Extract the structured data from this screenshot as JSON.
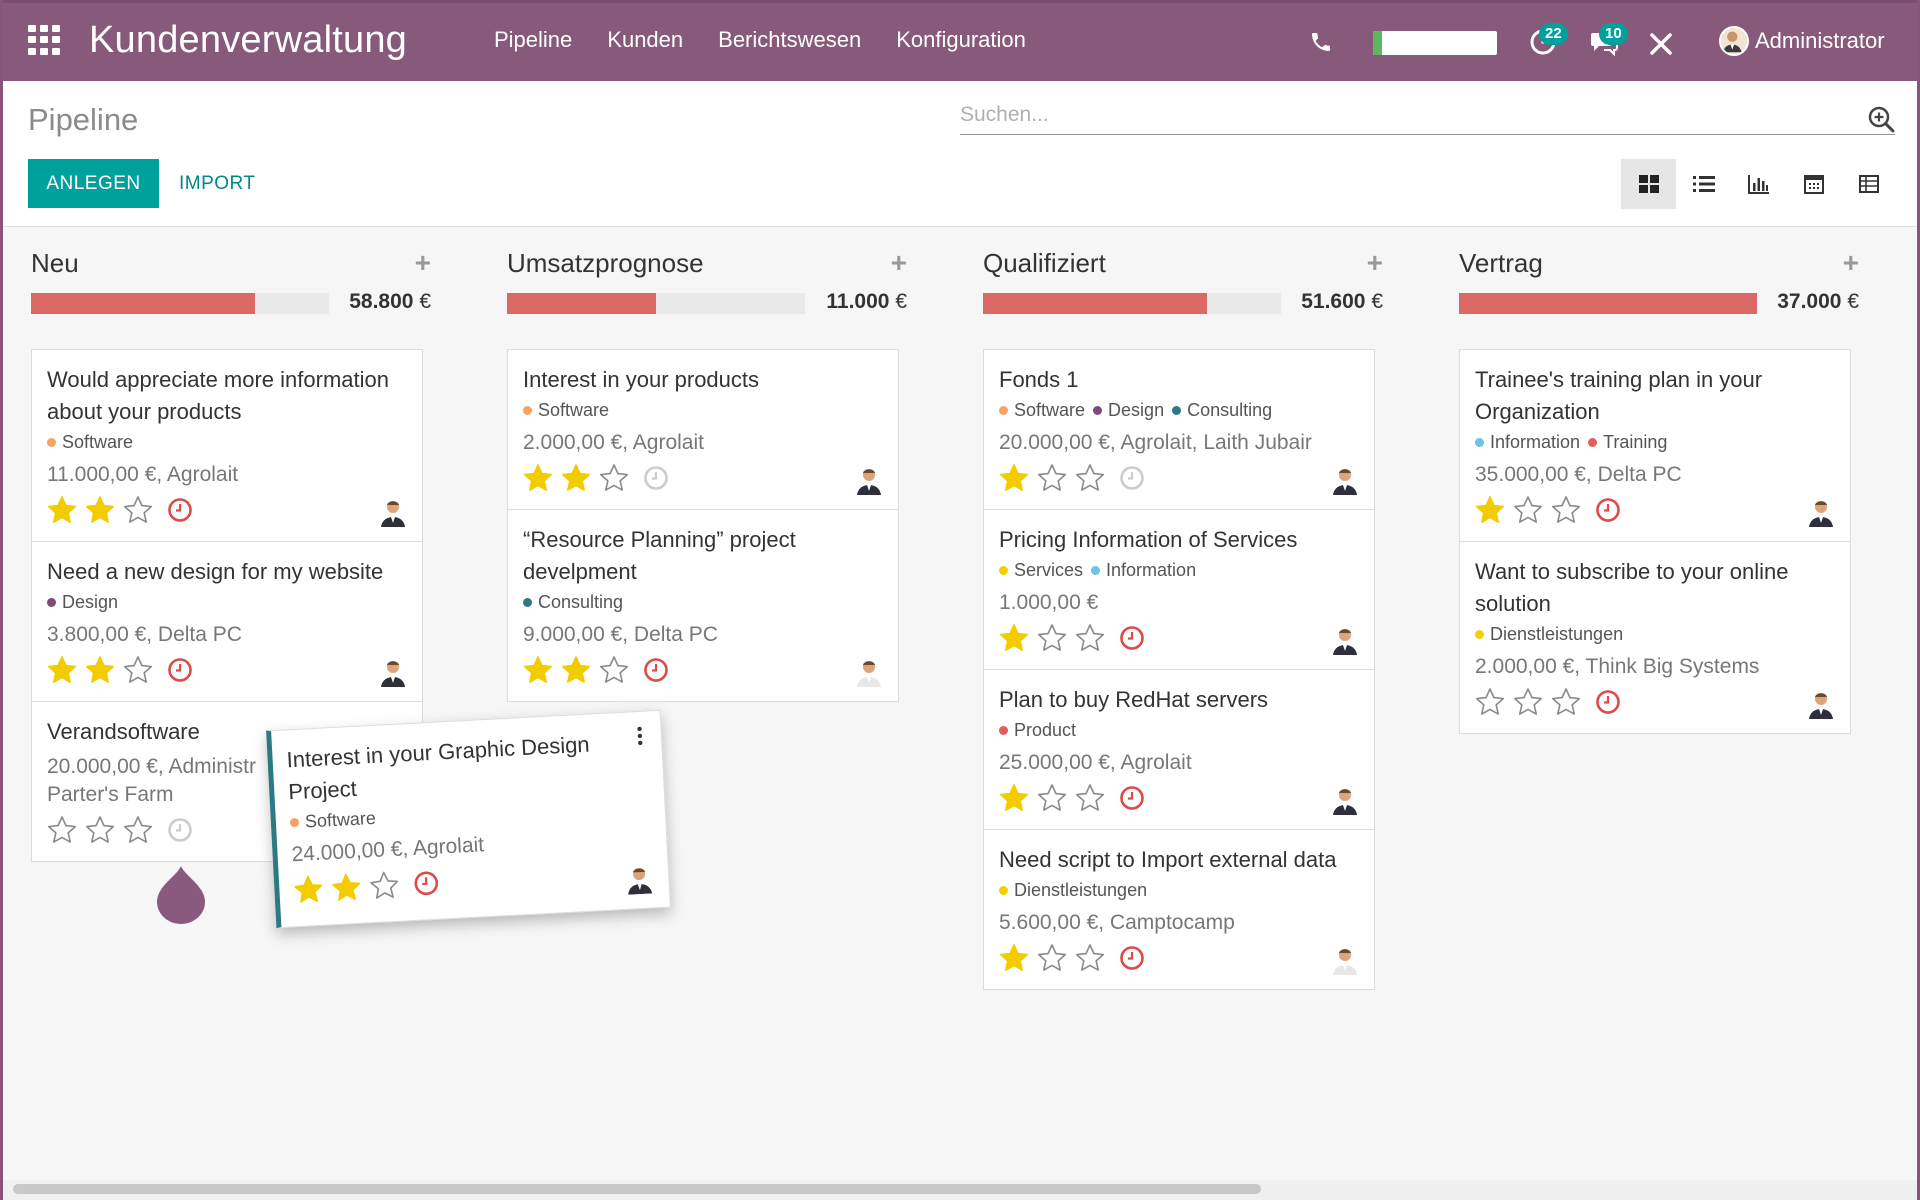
{
  "navbar": {
    "app_name": "Kundenverwaltung",
    "menu": [
      "Pipeline",
      "Kunden",
      "Berichtswesen",
      "Konfiguration"
    ],
    "activity_count": "22",
    "message_count": "10",
    "user_name": "Administrator",
    "voip_progress": 0.07
  },
  "control": {
    "breadcrumb": "Pipeline",
    "search_placeholder": "Suchen...",
    "create_label": "ANLEGEN",
    "import_label": "IMPORT",
    "views": [
      "kanban",
      "list",
      "graph",
      "calendar",
      "pivot"
    ],
    "active_view": "kanban"
  },
  "columns": [
    {
      "title": "Neu",
      "total": "58.800",
      "currency": "€",
      "progress": 0.75,
      "cards": [
        {
          "title": "Would appreciate more information about your products",
          "tags": [
            {
              "name": "Software",
              "color": "#f4a460"
            }
          ],
          "amount": "11.000,00 €, Agrolait",
          "stars": 2,
          "clock": "red"
        },
        {
          "title": "Need a new design for my website",
          "tags": [
            {
              "name": "Design",
              "color": "#7c4b7a"
            }
          ],
          "amount": "3.800,00 €, Delta PC",
          "stars": 2,
          "clock": "red"
        },
        {
          "title": "Verandsoftware",
          "tags": [],
          "amount": "20.000,00 €, Administr",
          "amount2": "Parter's Farm",
          "stars": 0,
          "clock": "grey"
        }
      ]
    },
    {
      "title": "Umsatzprognose",
      "total": "11.000",
      "currency": "€",
      "progress": 0.5,
      "cards": [
        {
          "title": "Interest in your products",
          "tags": [
            {
              "name": "Software",
              "color": "#f4a460"
            }
          ],
          "amount": "2.000,00 €, Agrolait",
          "stars": 2,
          "clock": "grey"
        },
        {
          "title": "“Resource Planning” project develpment",
          "tags": [
            {
              "name": "Consulting",
              "color": "#2b7a83"
            }
          ],
          "amount": "9.000,00 €, Delta PC",
          "stars": 2,
          "clock": "red"
        }
      ]
    },
    {
      "title": "Qualifiziert",
      "total": "51.600",
      "currency": "€",
      "progress": 0.75,
      "cards": [
        {
          "title": "Fonds 1",
          "tags": [
            {
              "name": "Software",
              "color": "#f4a460"
            },
            {
              "name": "Design",
              "color": "#7c4b7a"
            },
            {
              "name": "Consulting",
              "color": "#2b7a83"
            }
          ],
          "amount": "20.000,00 €, Agrolait, Laith Jubair",
          "stars": 1,
          "clock": "grey"
        },
        {
          "title": "Pricing Information of Services",
          "tags": [
            {
              "name": "Services",
              "color": "#f5d000"
            },
            {
              "name": "Information",
              "color": "#6cc1ed"
            }
          ],
          "amount": "1.000,00 €",
          "stars": 1,
          "clock": "red"
        },
        {
          "title": "Plan to buy RedHat servers",
          "tags": [
            {
              "name": "Product",
              "color": "#e45d5d"
            }
          ],
          "amount": "25.000,00 €, Agrolait",
          "stars": 1,
          "clock": "red"
        },
        {
          "title": "Need script to Import external data",
          "tags": [
            {
              "name": "Dienstleistungen",
              "color": "#f5d000"
            }
          ],
          "amount": "5.600,00 €, Camptocamp",
          "stars": 1,
          "clock": "red"
        }
      ]
    },
    {
      "title": "Vertrag",
      "total": "37.000",
      "currency": "€",
      "progress": 1.0,
      "cards": [
        {
          "title": "Trainee's training plan in your Organization",
          "tags": [
            {
              "name": "Information",
              "color": "#6cc1ed"
            },
            {
              "name": "Training",
              "color": "#e45d5d"
            }
          ],
          "amount": "35.000,00 €, Delta PC",
          "stars": 1,
          "clock": "red"
        },
        {
          "title": "Want to subscribe to your online solution",
          "tags": [
            {
              "name": "Dienstleistungen",
              "color": "#f5d000"
            }
          ],
          "amount": "2.000,00 €, Think Big Systems",
          "stars": 0,
          "clock": "red"
        }
      ]
    }
  ],
  "dragged_card": {
    "title": "Interest in your Graphic Design Project",
    "tags": [
      {
        "name": "Software",
        "color": "#f4a460"
      }
    ],
    "amount": "24.000,00 €, Agrolait",
    "stars": 2,
    "clock": "red"
  },
  "colors": {
    "brand": "#875a7b",
    "accent": "#00a09d",
    "star": "#f3cc00",
    "progress": "#dc6965",
    "clock_red": "#dc4a4a"
  }
}
